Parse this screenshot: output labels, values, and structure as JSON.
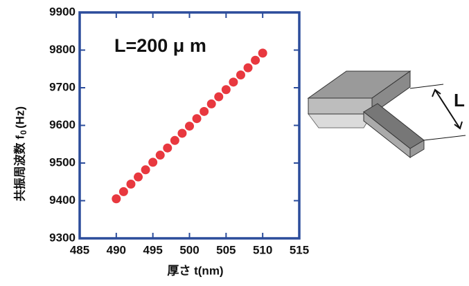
{
  "chart_data": {
    "type": "scatter",
    "annotation": "L=200 μ m",
    "x_label": "厚さ t(nm)",
    "y_label": {
      "main": "共振周波数 f",
      "sub": "0",
      "unit": "(Hz)"
    },
    "x": [
      490,
      491,
      492,
      493,
      494,
      495,
      496,
      497,
      498,
      499,
      500,
      501,
      502,
      503,
      504,
      505,
      506,
      507,
      508,
      509,
      510
    ],
    "values": [
      9405,
      9424,
      9444,
      9463,
      9482,
      9502,
      9521,
      9540,
      9560,
      9579,
      9598,
      9618,
      9637,
      9657,
      9676,
      9695,
      9715,
      9734,
      9753,
      9773,
      9792
    ],
    "color": "#e8383f",
    "frame_color": "#2b4c9b",
    "xlim": [
      485,
      515
    ],
    "xticks": [
      485,
      490,
      495,
      500,
      505,
      510,
      515
    ],
    "ylim": [
      9300,
      9900
    ],
    "yticks": [
      9300,
      9400,
      9500,
      9600,
      9700,
      9800,
      9900
    ],
    "diagram_label": "L"
  }
}
